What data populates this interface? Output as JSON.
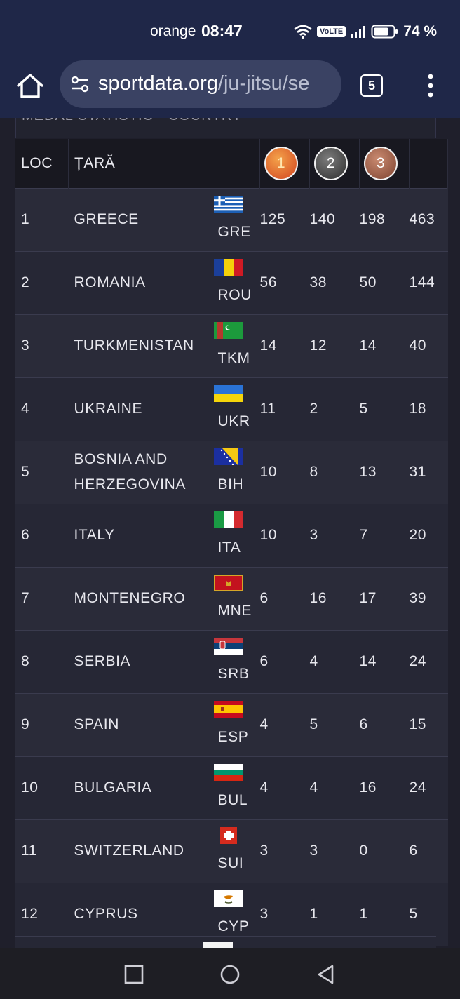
{
  "status_bar": {
    "carrier": "orange",
    "time": "08:47",
    "volte": "VoLTE",
    "battery": "74 %"
  },
  "browser": {
    "url_main": "sportdata.org",
    "url_path": "/ju-jitsu/se",
    "tab_count": "5"
  },
  "panel": {
    "cut_heading": "MEDAL STATISTIC - COUNTRY"
  },
  "table": {
    "headers": {
      "loc": "LOC",
      "country": "ȚARĂ",
      "gold": "1",
      "silver": "2",
      "bronze": "3"
    },
    "rows": [
      {
        "loc": "1",
        "name": "GREECE",
        "code": "GRE",
        "gold": "125",
        "silver": "140",
        "bronze": "198",
        "total": "463",
        "flag_icon": "greece-flag-icon"
      },
      {
        "loc": "2",
        "name": "ROMANIA",
        "code": "ROU",
        "gold": "56",
        "silver": "38",
        "bronze": "50",
        "total": "144",
        "flag_icon": "romania-flag-icon"
      },
      {
        "loc": "3",
        "name": "TURKMENISTAN",
        "code": "TKM",
        "gold": "14",
        "silver": "12",
        "bronze": "14",
        "total": "40",
        "flag_icon": "turkmenistan-flag-icon"
      },
      {
        "loc": "4",
        "name": "UKRAINE",
        "code": "UKR",
        "gold": "11",
        "silver": "2",
        "bronze": "5",
        "total": "18",
        "flag_icon": "ukraine-flag-icon"
      },
      {
        "loc": "5",
        "name": "BOSNIA AND HERZEGOVINA",
        "code": "BIH",
        "gold": "10",
        "silver": "8",
        "bronze": "13",
        "total": "31",
        "flag_icon": "bosnia-flag-icon"
      },
      {
        "loc": "6",
        "name": "ITALY",
        "code": "ITA",
        "gold": "10",
        "silver": "3",
        "bronze": "7",
        "total": "20",
        "flag_icon": "italy-flag-icon"
      },
      {
        "loc": "7",
        "name": "MONTENEGRO",
        "code": "MNE",
        "gold": "6",
        "silver": "16",
        "bronze": "17",
        "total": "39",
        "flag_icon": "montenegro-flag-icon"
      },
      {
        "loc": "8",
        "name": "SERBIA",
        "code": "SRB",
        "gold": "6",
        "silver": "4",
        "bronze": "14",
        "total": "24",
        "flag_icon": "serbia-flag-icon"
      },
      {
        "loc": "9",
        "name": "SPAIN",
        "code": "ESP",
        "gold": "4",
        "silver": "5",
        "bronze": "6",
        "total": "15",
        "flag_icon": "spain-flag-icon"
      },
      {
        "loc": "10",
        "name": "BULGARIA",
        "code": "BUL",
        "gold": "4",
        "silver": "4",
        "bronze": "16",
        "total": "24",
        "flag_icon": "bulgaria-flag-icon"
      },
      {
        "loc": "11",
        "name": "SWITZERLAND",
        "code": "SUI",
        "gold": "3",
        "silver": "3",
        "bronze": "0",
        "total": "6",
        "flag_icon": "switzerland-flag-icon"
      },
      {
        "loc": "12",
        "name": "CYPRUS",
        "code": "CYP",
        "gold": "3",
        "silver": "1",
        "bronze": "1",
        "total": "5",
        "flag_icon": "cyprus-flag-icon"
      }
    ]
  },
  "colors": {
    "browser_chrome": "#1f2748",
    "address_bar": "#3a4263",
    "page_bg": "#1f1f2b",
    "row_odd": "#2a2b39",
    "row_even": "#262735"
  }
}
